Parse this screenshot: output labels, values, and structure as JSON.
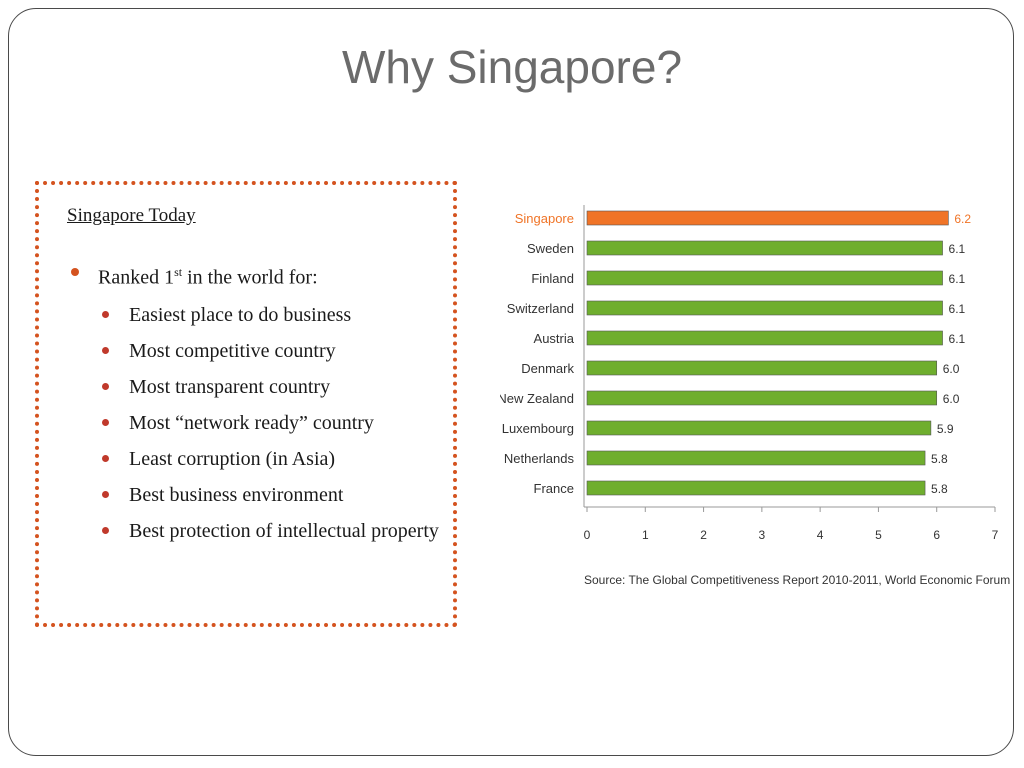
{
  "slide": {
    "title": "Why Singapore?",
    "box_heading": "Singapore Today",
    "ranked_prefix": "Ranked 1",
    "ranked_sup": "st",
    "ranked_suffix": " in the world for:",
    "items": [
      "Easiest place to do business",
      "Most competitive country",
      "Most transparent country",
      "Most “network ready” country",
      "Least corruption (in Asia)",
      "Best business environment",
      "Best protection of intellectual property"
    ]
  },
  "colors": {
    "highlight": "#f07427",
    "bar": "#6fae2e",
    "bullet": "#d4531f"
  },
  "chart_data": {
    "type": "bar",
    "orientation": "horizontal",
    "categories": [
      "Singapore",
      "Sweden",
      "Finland",
      "Switzerland",
      "Austria",
      "Denmark",
      "New Zealand",
      "Luxembourg",
      "Netherlands",
      "France"
    ],
    "values": [
      6.2,
      6.1,
      6.1,
      6.1,
      6.1,
      6.0,
      6.0,
      5.9,
      5.8,
      5.8
    ],
    "value_labels": [
      "6.2",
      "6.1",
      "6.1",
      "6.1",
      "6.1",
      "6.0",
      "6.0",
      "5.9",
      "5.8",
      "5.8"
    ],
    "highlight_category": "Singapore",
    "xlim": [
      0,
      7
    ],
    "xticks": [
      "0",
      "1",
      "2",
      "3",
      "4",
      "5",
      "6",
      "7"
    ],
    "source": "Source: The Global Competitiveness Report 2010-2011, World Economic Forum",
    "grid": false
  }
}
